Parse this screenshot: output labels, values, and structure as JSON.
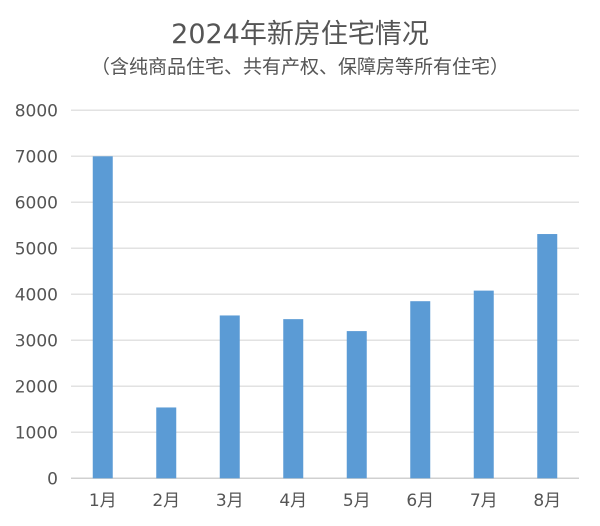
{
  "chart_data": {
    "type": "bar",
    "title": "2024年新房住宅情况",
    "subtitle": "（含纯商品住宅、共有产权、保障房等所有住宅）",
    "categories": [
      "1月",
      "2月",
      "3月",
      "4月",
      "5月",
      "6月",
      "7月",
      "8月"
    ],
    "values": [
      7000,
      1540,
      3540,
      3460,
      3200,
      3850,
      4080,
      5310
    ],
    "xlabel": "",
    "ylabel": "",
    "ylim": [
      0,
      8000
    ],
    "yticks": [
      "0",
      "1000",
      "2000",
      "3000",
      "4000",
      "5000",
      "6000",
      "7000",
      "8000"
    ],
    "grid": true,
    "legend": "none",
    "bar_color": "#5b9bd5"
  }
}
